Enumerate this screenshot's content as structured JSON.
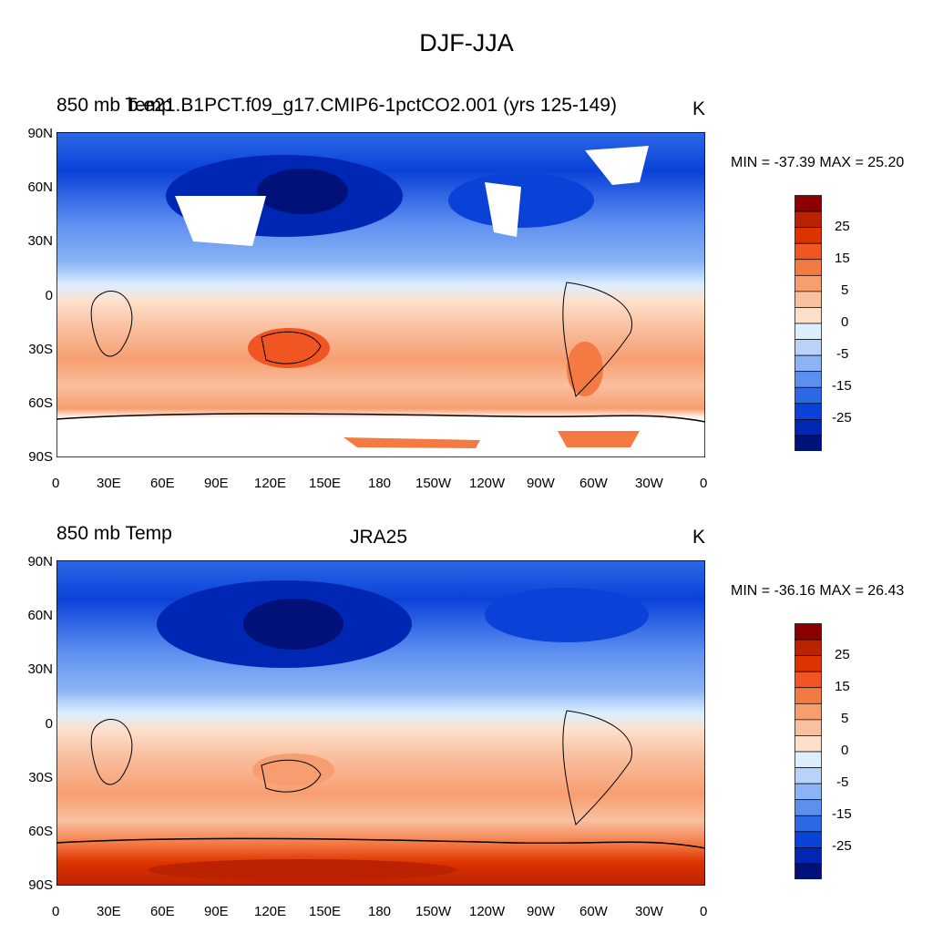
{
  "title": "DJF-JJA",
  "panels": [
    {
      "left_label": "850 mb Temp",
      "center_label": "b.e21.B1PCT.f09_g17.CMIP6-1pctCO2.001 (yrs 125-149)",
      "units": "K",
      "min_max": "MIN = -37.39 MAX =  25.20"
    },
    {
      "left_label": "850 mb Temp",
      "center_label": "JRA25",
      "units": "K",
      "min_max": "MIN = -36.16 MAX =  26.43"
    }
  ],
  "lat_labels": [
    "90N",
    "60N",
    "30N",
    "0",
    "30S",
    "60S",
    "90S"
  ],
  "lon_labels": [
    "0",
    "30E",
    "60E",
    "90E",
    "120E",
    "150E",
    "180",
    "150W",
    "120W",
    "90W",
    "60W",
    "30W",
    "0"
  ],
  "colorbar": {
    "labels": [
      "25",
      "15",
      "5",
      "0",
      "-5",
      "-15",
      "-25"
    ],
    "colors": [
      "#8b0000",
      "#bb2200",
      "#dd3300",
      "#f05522",
      "#f47a44",
      "#f79e70",
      "#f9c0a0",
      "#fde0cc",
      "#dceeff",
      "#b9d2f8",
      "#8cb4f5",
      "#5d8ff0",
      "#2d68e6",
      "#0a42d8",
      "#0026b4",
      "#00127a"
    ]
  }
}
